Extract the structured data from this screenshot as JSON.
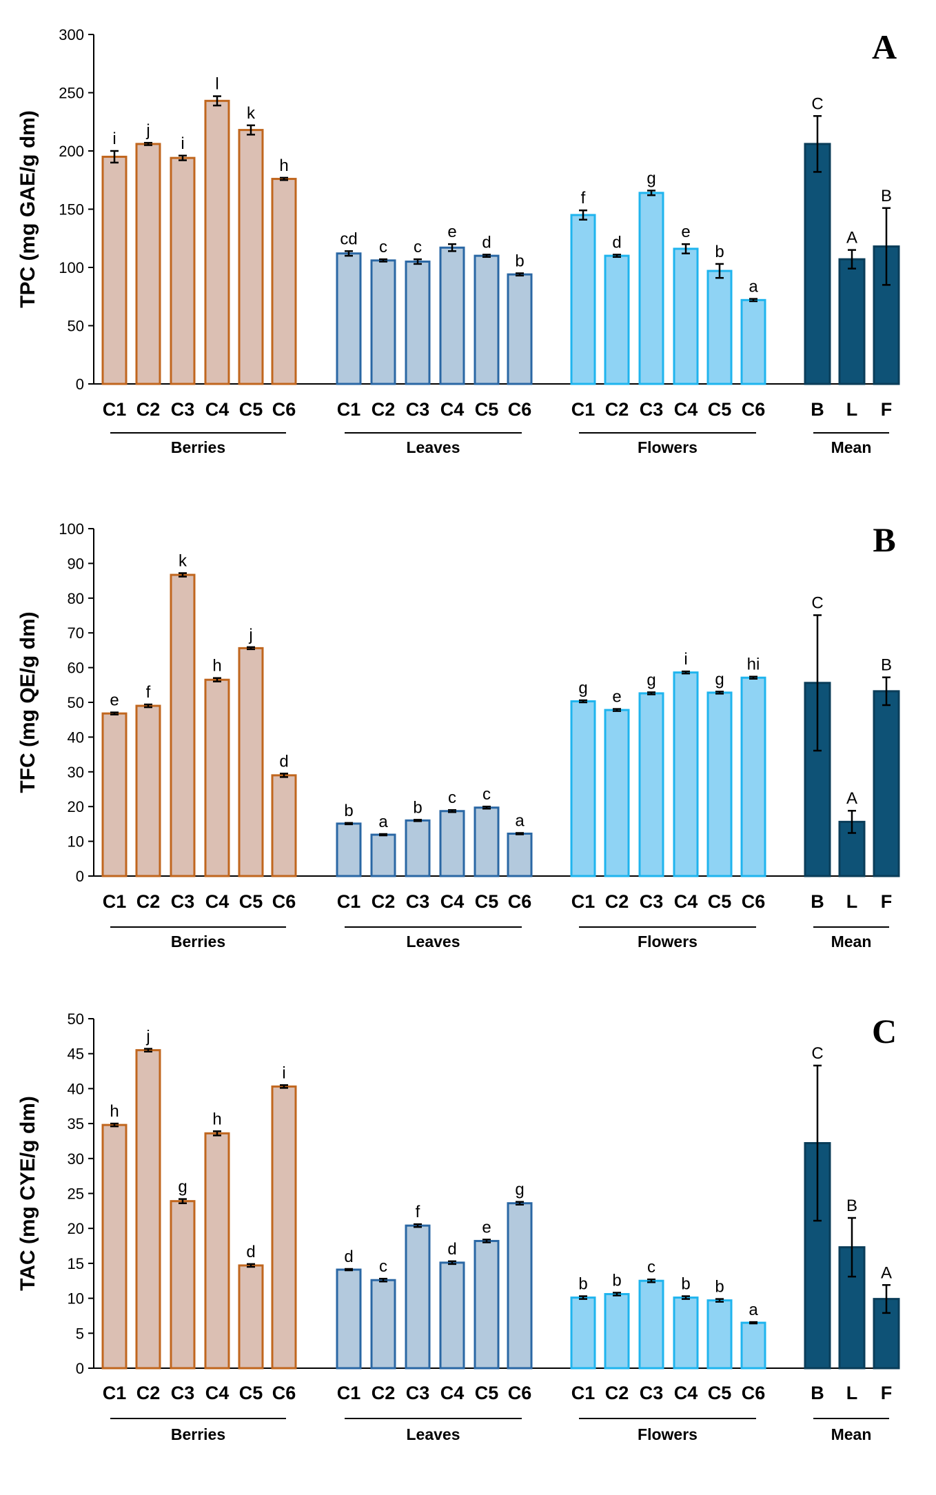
{
  "figure": {
    "categories": [
      "C1",
      "C2",
      "C3",
      "C4",
      "C5",
      "C6"
    ],
    "mean_categories": [
      "B",
      "L",
      "F"
    ],
    "groups": [
      "Berries",
      "Leaves",
      "Flowers",
      "Mean"
    ],
    "colors": {
      "berries_fill": "#dbbfb3",
      "berries_edge": "#c0661e",
      "leaves_fill": "#b3c9dd",
      "leaves_edge": "#2a67a4",
      "flowers_fill": "#8fd3f4",
      "flowers_edge": "#1fb4ee",
      "mean_fill": "#0e5276",
      "mean_edge": "#0a3d59"
    }
  },
  "chart_data": [
    {
      "type": "bar",
      "panel": "A",
      "ylabel": "TPC (mg GAE/g dm)",
      "ylim": [
        0,
        300
      ],
      "yticks": [
        0,
        50,
        100,
        150,
        200,
        250,
        300
      ],
      "series": [
        {
          "name": "Berries",
          "categories": [
            "C1",
            "C2",
            "C3",
            "C4",
            "C5",
            "C6"
          ],
          "values": [
            195,
            206,
            194,
            243,
            218,
            176
          ],
          "errors": [
            5,
            1,
            2,
            4,
            4,
            1
          ],
          "letters": [
            "i",
            "j",
            "i",
            "l",
            "k",
            "h"
          ]
        },
        {
          "name": "Leaves",
          "categories": [
            "C1",
            "C2",
            "C3",
            "C4",
            "C5",
            "C6"
          ],
          "values": [
            112,
            106,
            105,
            117,
            110,
            94
          ],
          "errors": [
            2,
            1,
            2,
            3,
            1,
            1
          ],
          "letters": [
            "cd",
            "c",
            "c",
            "e",
            "d",
            "b"
          ]
        },
        {
          "name": "Flowers",
          "categories": [
            "C1",
            "C2",
            "C3",
            "C4",
            "C5",
            "C6"
          ],
          "values": [
            145,
            110,
            164,
            116,
            97,
            72
          ],
          "errors": [
            4,
            1,
            2,
            4,
            6,
            1
          ],
          "letters": [
            "f",
            "d",
            "g",
            "e",
            "b",
            "a"
          ]
        },
        {
          "name": "Mean",
          "categories": [
            "B",
            "L",
            "F"
          ],
          "values": [
            206,
            107,
            118
          ],
          "errors": [
            24,
            8,
            33
          ],
          "letters": [
            "C",
            "A",
            "B"
          ]
        }
      ]
    },
    {
      "type": "bar",
      "panel": "B",
      "ylabel": "TFC (mg QE/g dm)",
      "ylim": [
        0,
        100
      ],
      "yticks": [
        0,
        10,
        20,
        30,
        40,
        50,
        60,
        70,
        80,
        90,
        100
      ],
      "series": [
        {
          "name": "Berries",
          "categories": [
            "C1",
            "C2",
            "C3",
            "C4",
            "C5",
            "C6"
          ],
          "values": [
            46.8,
            49.0,
            86.7,
            56.5,
            65.6,
            29.0
          ],
          "errors": [
            0.3,
            0.4,
            0.5,
            0.5,
            0.3,
            0.5
          ],
          "letters": [
            "e",
            "f",
            "k",
            "h",
            "j",
            "d"
          ]
        },
        {
          "name": "Leaves",
          "categories": [
            "C1",
            "C2",
            "C3",
            "C4",
            "C5",
            "C6"
          ],
          "values": [
            15.1,
            11.9,
            16.0,
            18.7,
            19.7,
            12.2
          ],
          "errors": [
            0.2,
            0.2,
            0.2,
            0.3,
            0.3,
            0.2
          ],
          "letters": [
            "b",
            "a",
            "b",
            "c",
            "c",
            "a"
          ]
        },
        {
          "name": "Flowers",
          "categories": [
            "C1",
            "C2",
            "C3",
            "C4",
            "C5",
            "C6"
          ],
          "values": [
            50.3,
            47.8,
            52.6,
            58.6,
            52.8,
            57.1
          ],
          "errors": [
            0.3,
            0.3,
            0.3,
            0.3,
            0.3,
            0.3
          ],
          "letters": [
            "g",
            "e",
            "g",
            "i",
            "g",
            "hi"
          ]
        },
        {
          "name": "Mean",
          "categories": [
            "B",
            "L",
            "F"
          ],
          "values": [
            55.6,
            15.6,
            53.2
          ],
          "errors": [
            19.5,
            3.2,
            4.0
          ],
          "letters": [
            "C",
            "A",
            "B"
          ]
        }
      ]
    },
    {
      "type": "bar",
      "panel": "C",
      "ylabel": "TAC (mg CYE/g dm)",
      "ylim": [
        0,
        50
      ],
      "yticks": [
        0,
        5,
        10,
        15,
        20,
        25,
        30,
        35,
        40,
        45,
        50
      ],
      "series": [
        {
          "name": "Berries",
          "categories": [
            "C1",
            "C2",
            "C3",
            "C4",
            "C5",
            "C6"
          ],
          "values": [
            34.8,
            45.5,
            23.9,
            33.6,
            14.7,
            40.3
          ],
          "errors": [
            0.2,
            0.2,
            0.3,
            0.3,
            0.2,
            0.2
          ],
          "letters": [
            "h",
            "j",
            "g",
            "h",
            "d",
            "i"
          ]
        },
        {
          "name": "Leaves",
          "categories": [
            "C1",
            "C2",
            "C3",
            "C4",
            "C5",
            "C6"
          ],
          "values": [
            14.1,
            12.6,
            20.4,
            15.1,
            18.2,
            23.6
          ],
          "errors": [
            0.1,
            0.2,
            0.2,
            0.2,
            0.2,
            0.2
          ],
          "letters": [
            "d",
            "c",
            "f",
            "d",
            "e",
            "g"
          ]
        },
        {
          "name": "Flowers",
          "categories": [
            "C1",
            "C2",
            "C3",
            "C4",
            "C5",
            "C6"
          ],
          "values": [
            10.1,
            10.6,
            12.5,
            10.1,
            9.7,
            6.5
          ],
          "errors": [
            0.2,
            0.2,
            0.2,
            0.2,
            0.2,
            0.1
          ],
          "letters": [
            "b",
            "b",
            "c",
            "b",
            "b",
            "a"
          ]
        },
        {
          "name": "Mean",
          "categories": [
            "B",
            "L",
            "F"
          ],
          "values": [
            32.2,
            17.3,
            9.9
          ],
          "errors": [
            11.1,
            4.2,
            2.0
          ],
          "letters": [
            "C",
            "B",
            "A"
          ]
        }
      ]
    }
  ]
}
